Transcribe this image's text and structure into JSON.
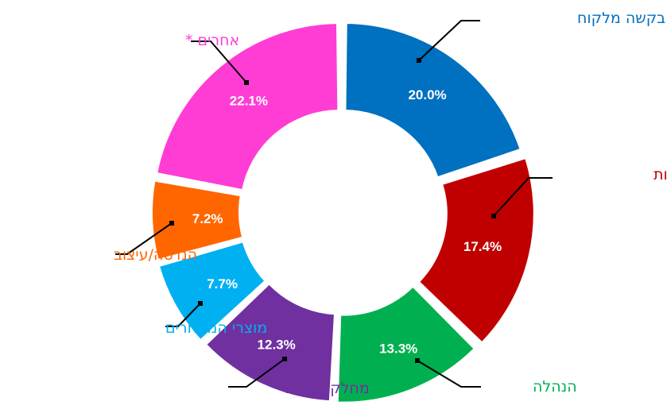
{
  "chart_data": {
    "type": "pie",
    "donut": true,
    "slices": [
      {
        "label": "בקשה מלקוח",
        "value": 20.0,
        "value_label": "20.0%",
        "color": "#0070C0"
      },
      {
        "label": "אנשי מכירות",
        "value": 17.4,
        "value_label": "17.4%",
        "color": "#C00000"
      },
      {
        "label": "הנהלה",
        "value": 13.3,
        "value_label": "13.3%",
        "color": "#00B050"
      },
      {
        "label": "מחלקת מו\"פ",
        "value": 12.3,
        "value_label": "12.3%",
        "color": "#7030A0"
      },
      {
        "label": "מוצרי המתחרים",
        "value": 7.7,
        "value_label": "7.7%",
        "color": "#00B0F0"
      },
      {
        "label": "הנדסה/עיצוב",
        "value": 7.2,
        "value_label": "7.2%",
        "color": "#FF6600"
      },
      {
        "label": "אחרים *",
        "value": 22.1,
        "value_label": "22.1%",
        "color": "#FF3DD5"
      }
    ]
  }
}
